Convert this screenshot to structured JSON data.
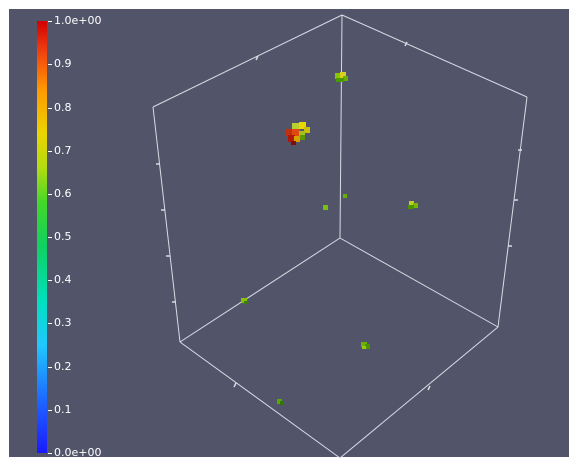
{
  "colorbar": {
    "label_max": "1.0e+00",
    "label_09": "0.9",
    "label_08": "0.8",
    "label_07": "0.7",
    "label_06": "0.6",
    "label_05": "0.5",
    "label_04": "0.4",
    "label_03": "0.3",
    "label_02": "0.2",
    "label_01": "0.1",
    "label_min": "0.0e+00",
    "colormap": [
      "#1a1aff",
      "#20c8ff",
      "#10d060",
      "#ecd400",
      "#d00000"
    ]
  },
  "scene": {
    "background": "#525569",
    "axes_color": "#d9dbe4"
  }
}
